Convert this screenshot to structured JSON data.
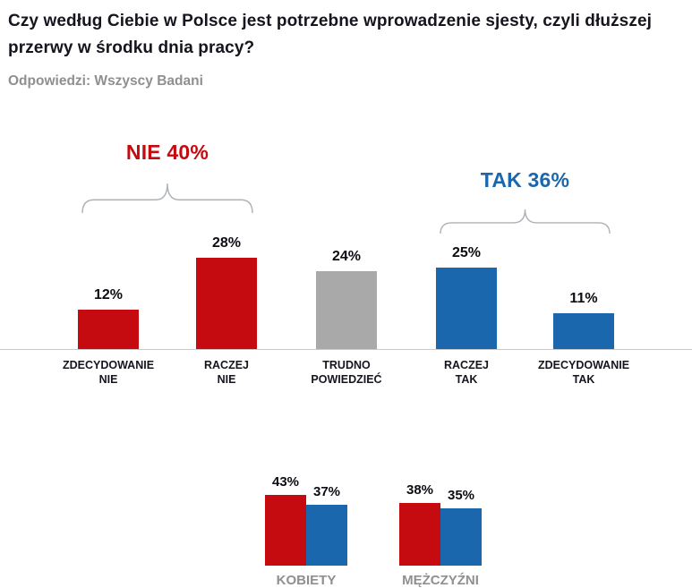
{
  "page": {
    "title": "Czy według Ciebie w Polsce jest potrzebne wprowadzenie sjesty, czyli dłuższej przerwy w środku dnia pracy?",
    "subtitle": "Odpowiedzi: Wszyscy Badani"
  },
  "colors": {
    "red": "#c50a10",
    "blue": "#1a67ad",
    "gray": "#a9a9a9",
    "title_text": "#15151e",
    "subtitle_text": "#8f8f8f",
    "value_text": "#0c0c12",
    "category_text": "#15151e",
    "group_label_text": "#8f8f8f",
    "bracket": "#adb2b8",
    "axis_line": "#c9c9c9"
  },
  "chart_data": [
    {
      "name": "main-results",
      "type": "bar",
      "title": "Czy według Ciebie w Polsce jest potrzebne wprowadzenie sjesty, czyli dłuższej przerwy w środku dnia pracy?",
      "subtitle": "Odpowiedzi: Wszyscy Badani",
      "unit": "%",
      "xlabel": "",
      "ylabel": "",
      "ylim": [
        0,
        30
      ],
      "grid": false,
      "categories": [
        "ZDECYDOWANIE NIE",
        "RACZEJ NIE",
        "TRUDNO POWIEDZIEĆ",
        "RACZEJ TAK",
        "ZDECYDOWANIE TAK"
      ],
      "category_lines": [
        [
          "ZDECYDOWANIE",
          "NIE"
        ],
        [
          "RACZEJ",
          "NIE"
        ],
        [
          "TRUDNO",
          "POWIEDZIEĆ"
        ],
        [
          "RACZEJ",
          "TAK"
        ],
        [
          "ZDECYDOWANIE",
          "TAK"
        ]
      ],
      "values": [
        12,
        28,
        24,
        25,
        11
      ],
      "value_labels": [
        "12%",
        "28%",
        "24%",
        "25%",
        "11%"
      ],
      "bar_colors": [
        "red",
        "red",
        "gray",
        "blue",
        "blue"
      ],
      "annotations": [
        {
          "id": "nie",
          "label": "NIE 40%",
          "total": 40,
          "color": "red",
          "span": [
            0,
            1
          ]
        },
        {
          "id": "tak",
          "label": "TAK 36%",
          "total": 36,
          "color": "blue",
          "span": [
            3,
            4
          ]
        }
      ]
    },
    {
      "name": "results-by-gender",
      "type": "bar",
      "unit": "%",
      "grid": false,
      "categories": [
        "KOBIETY",
        "MĘŻCZYŹNI"
      ],
      "series": [
        {
          "name": "NIE",
          "color": "red",
          "values": [
            43,
            38
          ],
          "value_labels": [
            "43%",
            "38%"
          ]
        },
        {
          "name": "TAK",
          "color": "blue",
          "values": [
            37,
            35
          ],
          "value_labels": [
            "37%",
            "35%"
          ]
        }
      ]
    }
  ]
}
